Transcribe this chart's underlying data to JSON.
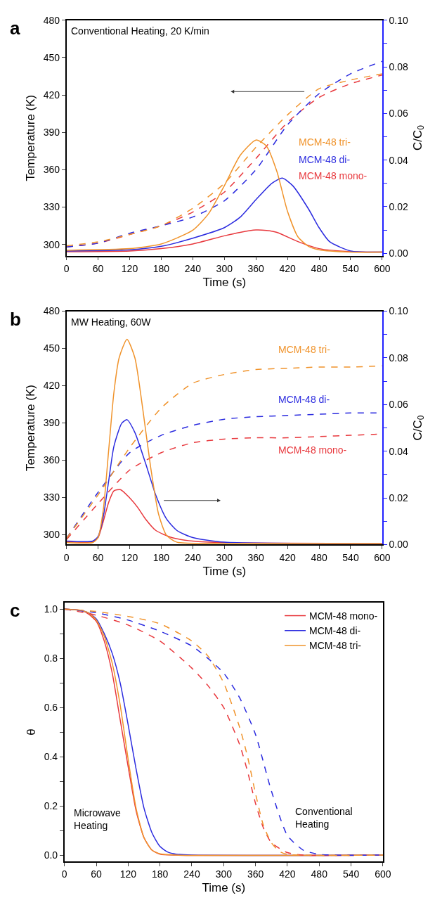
{
  "chart_data": [
    {
      "type": "line",
      "title": "a",
      "xlabel": "Time (s)",
      "ylabel": "Temperature (K)",
      "y2label": "C/C$_{0}$",
      "annotations": [
        "Conventional Heating, 20 K/min"
      ],
      "legend": false,
      "xlim": [
        0,
        600
      ],
      "xticks": [
        0,
        60,
        120,
        180,
        240,
        300,
        360,
        420,
        480,
        540,
        600
      ],
      "ylim": [
        291,
        480
      ],
      "yticks": [
        300,
        330,
        360,
        390,
        420,
        450,
        480
      ],
      "y2lim": [
        -0.001,
        0.1
      ],
      "y2ticks": [
        {
          "value": 0,
          "label": "0.00"
        },
        {
          "value": 0.01,
          "label": null
        },
        {
          "value": 0.02,
          "label": "0.02"
        },
        {
          "value": 0.03,
          "label": null
        },
        {
          "value": 0.04,
          "label": "0.04"
        },
        {
          "value": 0.05,
          "label": null
        },
        {
          "value": 0.06,
          "label": "0.06"
        },
        {
          "value": 0.07,
          "label": null
        },
        {
          "value": 0.08,
          "label": "0.08"
        },
        {
          "value": 0.09,
          "label": null
        },
        {
          "value": 0.1,
          "label": "0.10"
        }
      ],
      "series": [
        {
          "name": "MCM-48 mono-",
          "color": "#e8383d",
          "axis": "y2",
          "line_style": "solid",
          "x": [
            0,
            120,
            180,
            240,
            300,
            330,
            360,
            380,
            400,
            440,
            480,
            540,
            600
          ],
          "values": [
            0.0007,
            0.001,
            0.002,
            0.004,
            0.0075,
            0.009,
            0.01,
            0.0098,
            0.009,
            0.005,
            0.002,
            0.0007,
            0.0005
          ]
        },
        {
          "name": "MCM-48 di-",
          "color": "#2b2bdf",
          "axis": "y2",
          "line_style": "solid",
          "x": [
            0,
            120,
            180,
            240,
            300,
            330,
            360,
            390,
            410,
            430,
            460,
            480,
            500,
            540,
            600
          ],
          "values": [
            0.001,
            0.0015,
            0.003,
            0.0065,
            0.011,
            0.0155,
            0.023,
            0.03,
            0.0323,
            0.029,
            0.019,
            0.011,
            0.005,
            0.001,
            0.0005
          ]
        },
        {
          "name": "MCM-48 tri-",
          "color": "#f0932b",
          "axis": "y2",
          "line_style": "solid",
          "x": [
            0,
            120,
            180,
            240,
            270,
            300,
            330,
            360,
            380,
            400,
            420,
            440,
            460,
            480,
            540,
            600
          ],
          "values": [
            0.0013,
            0.002,
            0.004,
            0.0099,
            0.017,
            0.029,
            0.042,
            0.0486,
            0.046,
            0.035,
            0.018,
            0.007,
            0.003,
            0.0015,
            0.0005,
            0.0005
          ]
        },
        {
          "color": "#e8383d",
          "axis": "y",
          "line_style": "dashed",
          "x": [
            0,
            60,
            120,
            180,
            240,
            300,
            360,
            420,
            480,
            540,
            600
          ],
          "values": [
            298,
            301,
            308,
            315,
            326,
            342,
            369,
            398,
            418,
            429,
            436
          ]
        },
        {
          "color": "#2b2bdf",
          "axis": "y",
          "line_style": "dashed",
          "x": [
            0,
            60,
            120,
            180,
            240,
            300,
            360,
            420,
            480,
            540,
            600
          ],
          "values": [
            298,
            301,
            309,
            315,
            322,
            335,
            360,
            396,
            421,
            437,
            447
          ]
        },
        {
          "color": "#f0932b",
          "axis": "y",
          "line_style": "dashed",
          "x": [
            0,
            60,
            120,
            180,
            240,
            300,
            360,
            420,
            480,
            540,
            600
          ],
          "values": [
            299,
            302,
            308,
            315,
            329,
            349,
            378,
            404,
            425,
            432,
            437
          ]
        }
      ]
    },
    {
      "type": "line",
      "title": "b",
      "xlabel": "Time (s)",
      "ylabel": "Temperature (K)",
      "y2label": "C/C$_{0}$",
      "annotations": [
        "MW Heating, 60W"
      ],
      "legend": false,
      "xlim": [
        0,
        600
      ],
      "xticks": [
        0,
        60,
        120,
        180,
        240,
        300,
        360,
        420,
        480,
        540,
        600
      ],
      "ylim": [
        292,
        480
      ],
      "yticks": [
        300,
        330,
        360,
        390,
        420,
        450,
        480
      ],
      "y2lim": [
        0,
        0.1
      ],
      "y2ticks": [
        {
          "value": 0,
          "label": "0.00"
        },
        {
          "value": 0.01,
          "label": null
        },
        {
          "value": 0.02,
          "label": "0.02"
        },
        {
          "value": 0.03,
          "label": null
        },
        {
          "value": 0.04,
          "label": "0.04"
        },
        {
          "value": 0.05,
          "label": null
        },
        {
          "value": 0.06,
          "label": "0.06"
        },
        {
          "value": 0.07,
          "label": null
        },
        {
          "value": 0.08,
          "label": "0.08"
        },
        {
          "value": 0.09,
          "label": null
        },
        {
          "value": 0.1,
          "label": "0.10"
        }
      ],
      "series": [
        {
          "name": "MCM-48 mono-",
          "color": "#e8383d",
          "axis": "y2",
          "line_style": "solid",
          "x": [
            0,
            50,
            60,
            70,
            80,
            90,
            103,
            120,
            135,
            150,
            170,
            200,
            240,
            300,
            600
          ],
          "values": [
            0.0012,
            0.0012,
            0.003,
            0.01,
            0.018,
            0.023,
            0.0235,
            0.02,
            0.016,
            0.011,
            0.006,
            0.003,
            0.0015,
            0.0008,
            0.0005
          ]
        },
        {
          "name": "MCM-48 di-",
          "color": "#2b2bdf",
          "axis": "y2",
          "line_style": "solid",
          "x": [
            0,
            50,
            60,
            70,
            80,
            90,
            105,
            115,
            130,
            150,
            170,
            190,
            210,
            240,
            300,
            600
          ],
          "values": [
            0.0015,
            0.0015,
            0.0035,
            0.012,
            0.027,
            0.042,
            0.052,
            0.0535,
            0.048,
            0.035,
            0.021,
            0.011,
            0.006,
            0.003,
            0.001,
            0.0005
          ]
        },
        {
          "name": "MCM-48 tri-",
          "color": "#f0932b",
          "axis": "y2",
          "line_style": "solid",
          "x": [
            0,
            50,
            60,
            70,
            80,
            90,
            100,
            115,
            130,
            145,
            160,
            175,
            190,
            210,
            300,
            600
          ],
          "values": [
            0.0009,
            0.0009,
            0.003,
            0.015,
            0.04,
            0.065,
            0.08,
            0.088,
            0.08,
            0.058,
            0.033,
            0.013,
            0.004,
            0.001,
            0.0005,
            0.0005
          ]
        },
        {
          "color": "#e8383d",
          "axis": "y",
          "line_style": "dashed",
          "x": [
            0,
            60,
            120,
            180,
            240,
            300,
            360,
            420,
            480,
            540,
            600
          ],
          "values": [
            296,
            325,
            352,
            366,
            374,
            377,
            378,
            378,
            379,
            380,
            381
          ]
        },
        {
          "color": "#2b2bdf",
          "axis": "y",
          "line_style": "dashed",
          "x": [
            0,
            60,
            120,
            180,
            240,
            300,
            360,
            420,
            480,
            540,
            600
          ],
          "values": [
            297,
            334,
            366,
            380,
            388,
            393,
            395,
            396,
            397,
            398,
            398
          ]
        },
        {
          "color": "#f0932b",
          "axis": "y",
          "line_style": "dashed",
          "x": [
            0,
            60,
            120,
            180,
            240,
            300,
            360,
            420,
            480,
            540,
            600
          ],
          "values": [
            297,
            332,
            370,
            402,
            422,
            429,
            433,
            434,
            435,
            435,
            436
          ]
        }
      ]
    },
    {
      "type": "line",
      "title": "c",
      "xlabel": "Time (s)",
      "ylabel": "θ",
      "annotations": [
        "Microwave Heating",
        "Conventional Heating"
      ],
      "legend": "top right",
      "xlim": [
        0,
        600
      ],
      "xticks": [
        0,
        60,
        120,
        180,
        240,
        300,
        360,
        420,
        480,
        540,
        600
      ],
      "ylim": [
        -0.025,
        1.025
      ],
      "yticks": [
        {
          "value": 0,
          "label": "0.0"
        },
        {
          "value": 0.1,
          "label": null
        },
        {
          "value": 0.2,
          "label": "0.2"
        },
        {
          "value": 0.3,
          "label": null
        },
        {
          "value": 0.4,
          "label": "0.4"
        },
        {
          "value": 0.5,
          "label": null
        },
        {
          "value": 0.6,
          "label": "0.6"
        },
        {
          "value": 0.7,
          "label": null
        },
        {
          "value": 0.8,
          "label": "0.8"
        },
        {
          "value": 0.9,
          "label": null
        },
        {
          "value": 1,
          "label": "1.0"
        }
      ],
      "series": [
        {
          "name": "MCM-48 mono-",
          "color": "#e8383d",
          "line_style": "solid",
          "x": [
            0,
            30,
            45,
            60,
            75,
            90,
            105,
            120,
            135,
            150,
            165,
            180,
            210,
            600
          ],
          "values": [
            1,
            0.995,
            0.98,
            0.95,
            0.87,
            0.74,
            0.55,
            0.36,
            0.18,
            0.07,
            0.02,
            0.004,
            0,
            0
          ]
        },
        {
          "name": "MCM-48 di-",
          "color": "#2b2bdf",
          "line_style": "solid",
          "x": [
            0,
            30,
            45,
            60,
            75,
            90,
            105,
            120,
            135,
            150,
            165,
            180,
            195,
            210,
            240,
            600
          ],
          "values": [
            1,
            0.995,
            0.985,
            0.96,
            0.9,
            0.82,
            0.7,
            0.53,
            0.35,
            0.19,
            0.09,
            0.035,
            0.012,
            0.004,
            0,
            0
          ]
        },
        {
          "name": "MCM-48 tri-",
          "color": "#f0932b",
          "line_style": "solid",
          "x": [
            0,
            30,
            45,
            60,
            75,
            90,
            105,
            120,
            135,
            150,
            165,
            180,
            210,
            600
          ],
          "values": [
            1,
            0.995,
            0.985,
            0.955,
            0.89,
            0.78,
            0.61,
            0.39,
            0.19,
            0.07,
            0.02,
            0.005,
            0,
            0
          ]
        },
        {
          "color": "#e8383d",
          "line_style": "dashed",
          "x": [
            0,
            60,
            120,
            180,
            240,
            270,
            300,
            330,
            345,
            360,
            375,
            390,
            420,
            450,
            600
          ],
          "values": [
            1,
            0.975,
            0.935,
            0.87,
            0.76,
            0.69,
            0.6,
            0.45,
            0.34,
            0.21,
            0.11,
            0.05,
            0.01,
            0,
            0
          ]
        },
        {
          "color": "#2b2bdf",
          "line_style": "dashed",
          "x": [
            0,
            60,
            120,
            180,
            240,
            270,
            300,
            330,
            360,
            390,
            420,
            450,
            480,
            510,
            600
          ],
          "values": [
            1,
            0.985,
            0.955,
            0.91,
            0.85,
            0.8,
            0.74,
            0.64,
            0.49,
            0.26,
            0.08,
            0.02,
            0.003,
            0,
            0
          ]
        },
        {
          "color": "#f0932b",
          "line_style": "dashed",
          "x": [
            0,
            60,
            120,
            180,
            240,
            270,
            300,
            330,
            345,
            360,
            375,
            390,
            405,
            420,
            600
          ],
          "values": [
            1,
            0.99,
            0.97,
            0.94,
            0.87,
            0.81,
            0.7,
            0.52,
            0.4,
            0.25,
            0.12,
            0.05,
            0.015,
            0.003,
            0
          ]
        }
      ]
    }
  ]
}
